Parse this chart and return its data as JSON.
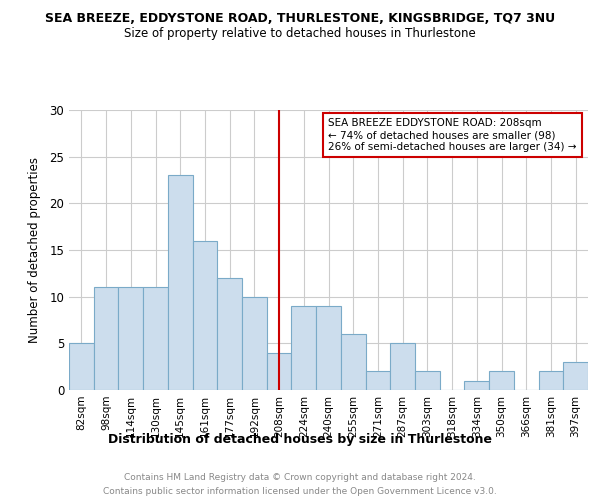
{
  "title": "SEA BREEZE, EDDYSTONE ROAD, THURLESTONE, KINGSBRIDGE, TQ7 3NU",
  "subtitle": "Size of property relative to detached houses in Thurlestone",
  "xlabel": "Distribution of detached houses by size in Thurlestone",
  "ylabel": "Number of detached properties",
  "categories": [
    "82sqm",
    "98sqm",
    "114sqm",
    "130sqm",
    "145sqm",
    "161sqm",
    "177sqm",
    "192sqm",
    "208sqm",
    "224sqm",
    "240sqm",
    "255sqm",
    "271sqm",
    "287sqm",
    "303sqm",
    "318sqm",
    "334sqm",
    "350sqm",
    "366sqm",
    "381sqm",
    "397sqm"
  ],
  "values": [
    5,
    11,
    11,
    11,
    23,
    16,
    12,
    10,
    4,
    9,
    9,
    6,
    2,
    5,
    2,
    0,
    1,
    2,
    0,
    2,
    3
  ],
  "bar_color": "#ccdded",
  "bar_edge_color": "#7aaac8",
  "marker_index": 8,
  "marker_color": "#cc0000",
  "annotation_title": "SEA BREEZE EDDYSTONE ROAD: 208sqm",
  "annotation_line1": "← 74% of detached houses are smaller (98)",
  "annotation_line2": "26% of semi-detached houses are larger (34) →",
  "annotation_box_color": "#cc0000",
  "ylim": [
    0,
    30
  ],
  "yticks": [
    0,
    5,
    10,
    15,
    20,
    25,
    30
  ],
  "footer_line1": "Contains HM Land Registry data © Crown copyright and database right 2024.",
  "footer_line2": "Contains public sector information licensed under the Open Government Licence v3.0.",
  "background_color": "#ffffff",
  "grid_color": "#cccccc"
}
